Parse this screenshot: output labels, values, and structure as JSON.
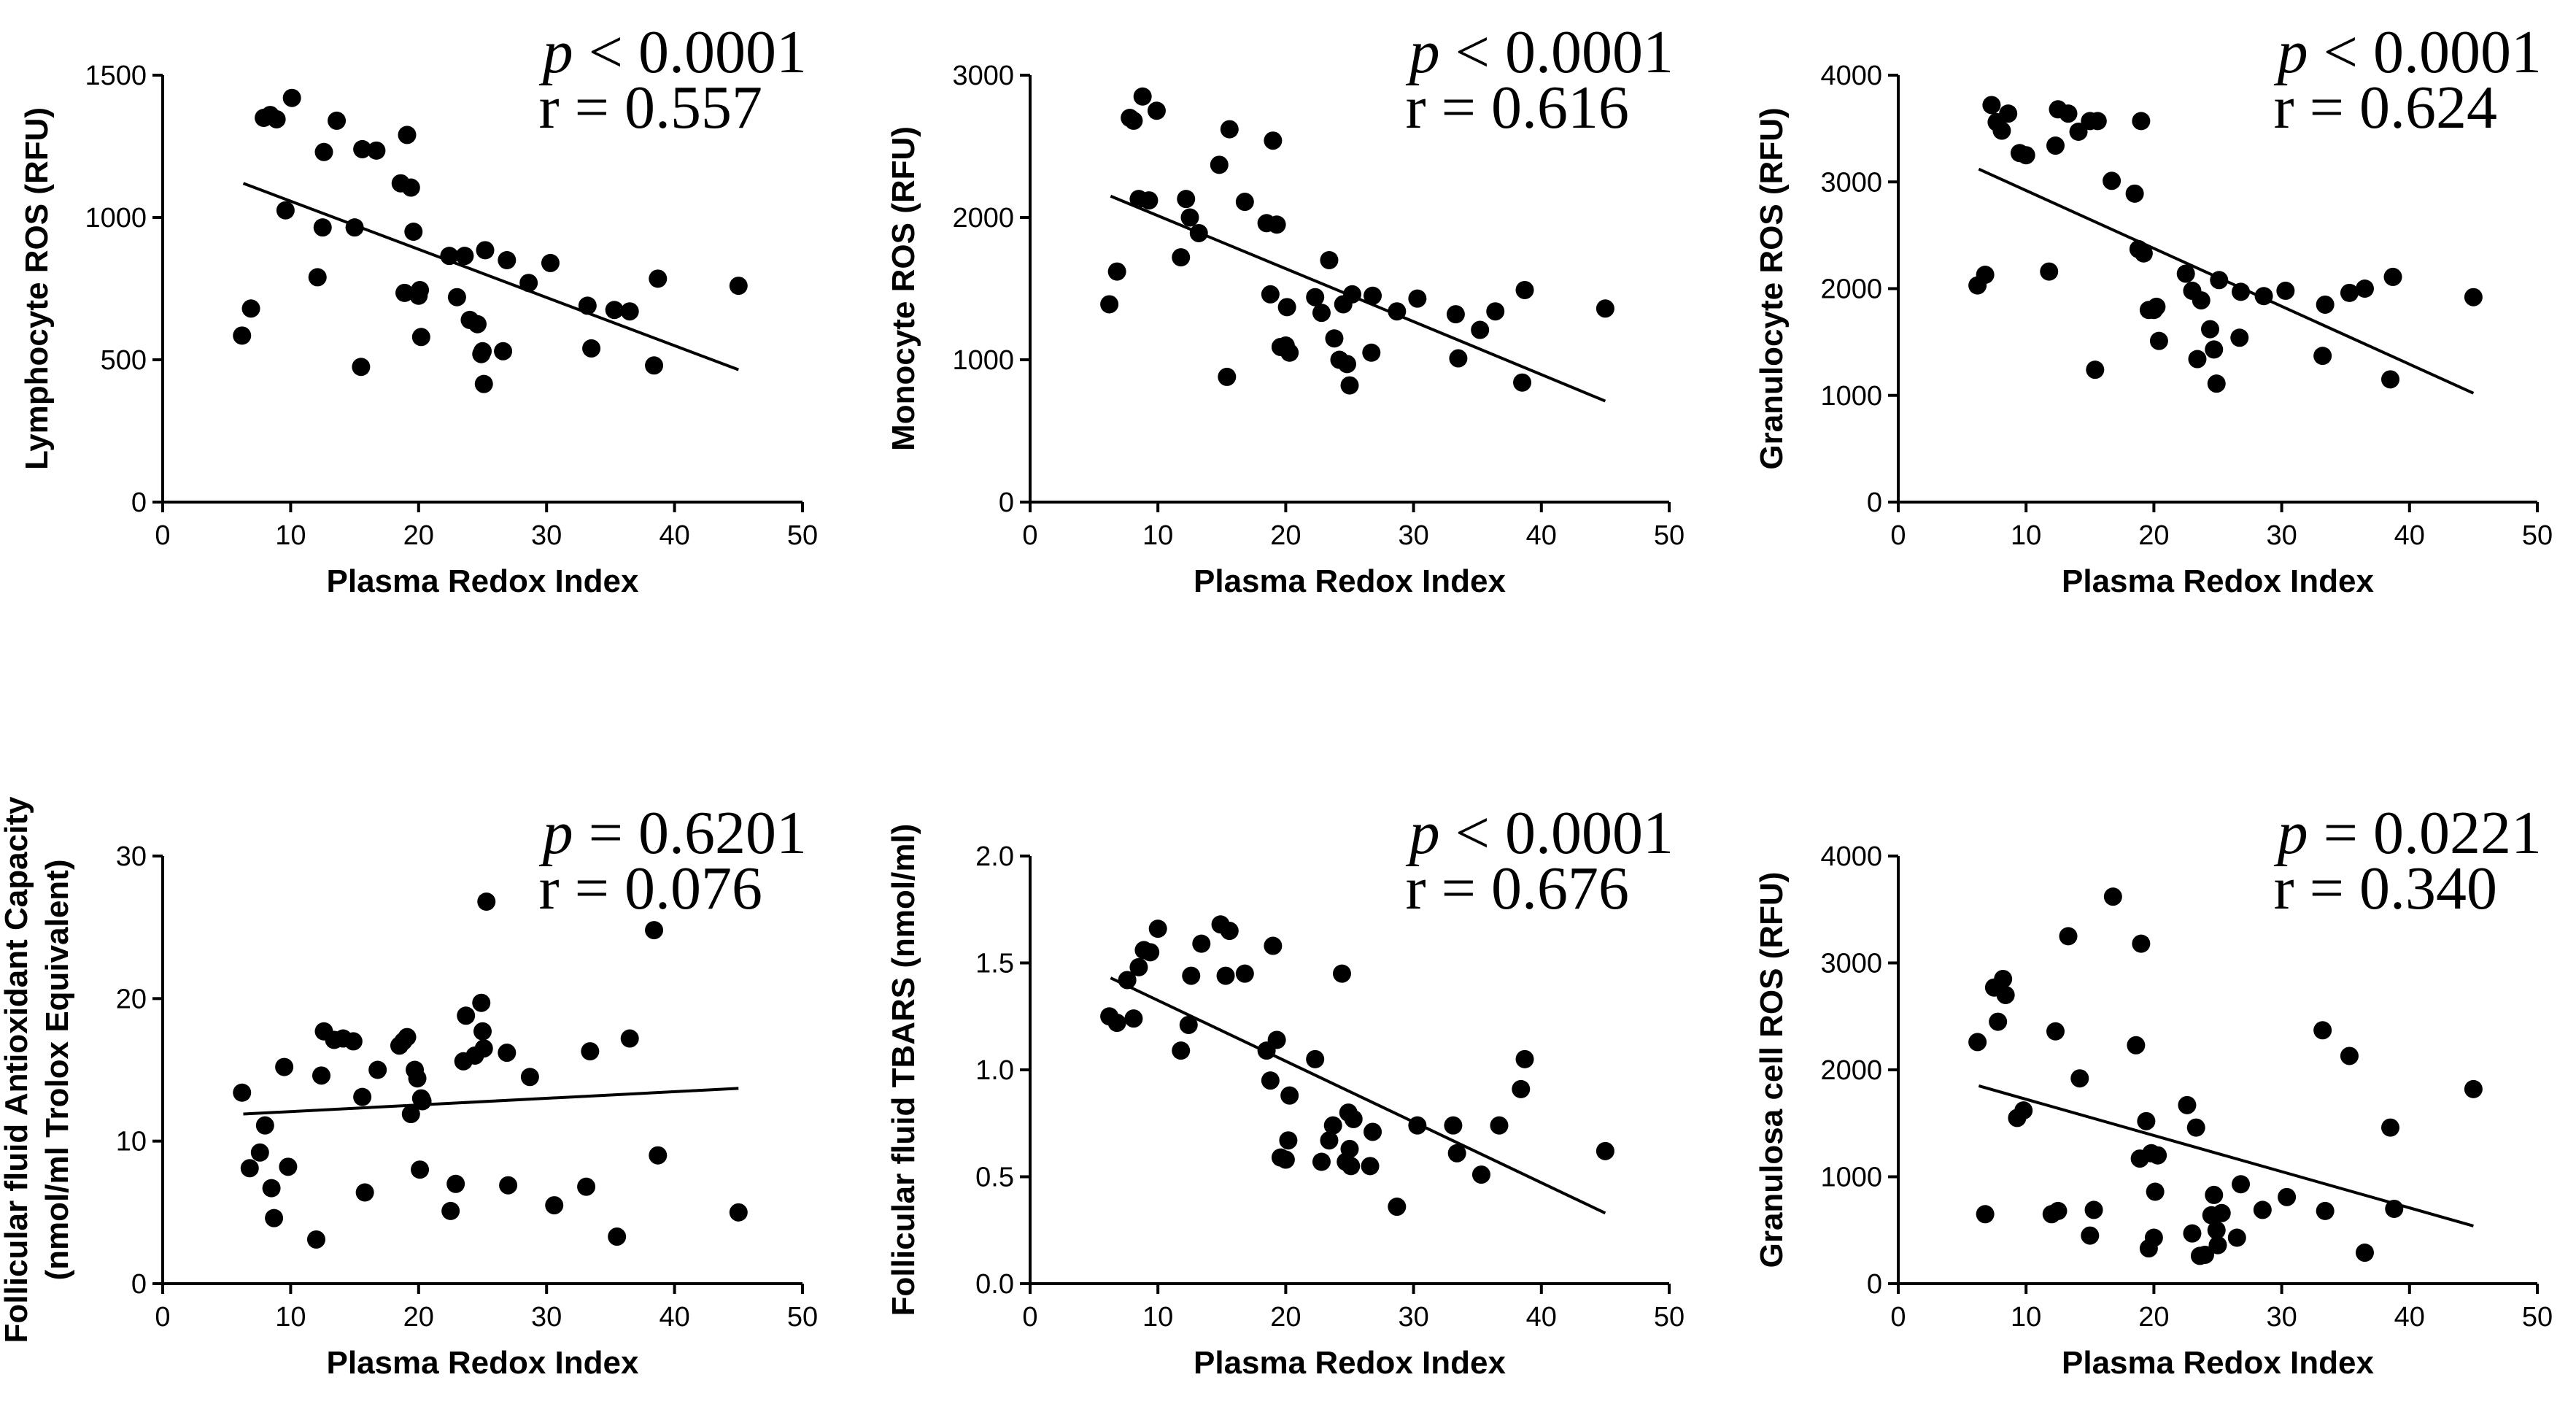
{
  "chart_data": [
    {
      "type": "scatter",
      "xlabel": "Plasma Redox Index",
      "ylabel": [
        "Lymphocyte ROS (RFU)"
      ],
      "xlim": [
        0,
        50
      ],
      "ylim": [
        0,
        1500
      ],
      "xticks": [
        "0",
        "10",
        "20",
        "30",
        "40",
        "50"
      ],
      "yticks": [
        "0",
        "500",
        "1000",
        "1500"
      ],
      "stats": {
        "p_symbol": "p",
        "p_rest": " < 0.0001",
        "r": "r = 0.557"
      },
      "fit_line": {
        "x": [
          6.3,
          45
        ],
        "y": [
          1120,
          465
        ]
      },
      "x": [
        6.2,
        6.9,
        7.9,
        8.4,
        8.9,
        9.6,
        10.1,
        12.1,
        12.5,
        12.6,
        13.6,
        15.0,
        15.5,
        15.6,
        16.7,
        18.6,
        18.9,
        19.1,
        19.4,
        19.6,
        20.0,
        20.1,
        20.2,
        22.4,
        23.0,
        23.6,
        24.0,
        24.6,
        24.9,
        25.0,
        25.1,
        25.2,
        26.6,
        26.9,
        28.6,
        30.3,
        33.2,
        33.5,
        35.3,
        36.5,
        38.4,
        38.7,
        45.0
      ],
      "y": [
        585,
        680,
        1350,
        1360,
        1345,
        1025,
        1420,
        790,
        965,
        1230,
        1340,
        965,
        475,
        1240,
        1235,
        1120,
        735,
        1290,
        1105,
        950,
        725,
        745,
        580,
        865,
        720,
        865,
        640,
        625,
        520,
        530,
        415,
        885,
        530,
        850,
        770,
        840,
        690,
        540,
        675,
        670,
        480,
        785,
        760
      ]
    },
    {
      "type": "scatter",
      "xlabel": "Plasma Redox Index",
      "ylabel": [
        "Monocyte ROS (RFU)"
      ],
      "xlim": [
        0,
        50
      ],
      "ylim": [
        0,
        3000
      ],
      "xticks": [
        "0",
        "10",
        "20",
        "30",
        "40",
        "50"
      ],
      "yticks": [
        "0",
        "1000",
        "2000",
        "3000"
      ],
      "stats": {
        "p_symbol": "p",
        "p_rest": " < 0.0001",
        "r": "r = 0.616"
      },
      "fit_line": {
        "x": [
          6.3,
          45
        ],
        "y": [
          2150,
          710
        ]
      },
      "x": [
        6.2,
        6.8,
        7.8,
        8.1,
        8.5,
        8.8,
        9.3,
        9.9,
        11.8,
        12.2,
        12.5,
        13.2,
        14.8,
        15.4,
        15.6,
        16.8,
        18.5,
        18.8,
        19.0,
        19.3,
        19.6,
        20.0,
        20.1,
        20.3,
        22.3,
        22.8,
        23.4,
        23.8,
        24.2,
        24.5,
        24.8,
        25.0,
        25.2,
        26.7,
        26.8,
        28.7,
        30.3,
        33.3,
        33.5,
        35.2,
        36.4,
        38.5,
        38.7,
        45.0
      ],
      "y": [
        1390,
        1620,
        2700,
        2680,
        2130,
        2850,
        2120,
        2750,
        1720,
        2130,
        2000,
        1890,
        2370,
        880,
        2620,
        2110,
        1960,
        1460,
        2540,
        1950,
        1090,
        1100,
        1370,
        1050,
        1440,
        1330,
        1700,
        1150,
        1000,
        1390,
        970,
        820,
        1460,
        1050,
        1450,
        1340,
        1430,
        1320,
        1010,
        1210,
        1340,
        840,
        1490,
        1360
      ]
    },
    {
      "type": "scatter",
      "xlabel": "Plasma Redox Index",
      "ylabel": [
        "Granulocyte ROS (RFU)"
      ],
      "xlim": [
        0,
        50
      ],
      "ylim": [
        0,
        4000
      ],
      "xticks": [
        "0",
        "10",
        "20",
        "30",
        "40",
        "50"
      ],
      "yticks": [
        "0",
        "1000",
        "2000",
        "3000",
        "4000"
      ],
      "stats": {
        "p_symbol": "p",
        "p_rest": " < 0.0001",
        "r": "r = 0.624"
      },
      "fit_line": {
        "x": [
          6.3,
          45
        ],
        "y": [
          3120,
          1020
        ]
      },
      "x": [
        6.2,
        6.8,
        7.3,
        7.7,
        8.1,
        8.6,
        9.5,
        10.0,
        11.8,
        12.3,
        12.5,
        13.3,
        14.1,
        15.0,
        15.4,
        15.6,
        16.7,
        18.5,
        18.8,
        19.0,
        19.2,
        19.6,
        20.0,
        20.2,
        20.4,
        22.5,
        23.0,
        23.4,
        23.7,
        24.4,
        24.7,
        24.9,
        25.1,
        26.7,
        26.8,
        28.6,
        30.3,
        33.2,
        33.4,
        35.3,
        36.5,
        38.5,
        38.7,
        45.0
      ],
      "y": [
        2030,
        2130,
        3720,
        3560,
        3480,
        3640,
        3270,
        3250,
        2160,
        3340,
        3680,
        3640,
        3470,
        3570,
        1240,
        3570,
        3010,
        2890,
        2370,
        3570,
        2330,
        1800,
        1800,
        1830,
        1510,
        2140,
        1980,
        1340,
        1890,
        1620,
        1430,
        1110,
        2080,
        1540,
        1970,
        1930,
        1980,
        1370,
        1850,
        1960,
        2000,
        1150,
        2110,
        1920
      ]
    },
    {
      "type": "scatter",
      "xlabel": "Plasma Redox Index",
      "ylabel": [
        "Follicular fluid Antioxidant Capacity",
        "(nmol/ml Trolox Equivalent)"
      ],
      "xlim": [
        0,
        50
      ],
      "ylim": [
        0,
        30
      ],
      "xticks": [
        "0",
        "10",
        "20",
        "30",
        "40",
        "50"
      ],
      "yticks": [
        "0",
        "10",
        "20",
        "30"
      ],
      "stats": {
        "p_symbol": "p",
        "p_rest": " = 0.6201",
        "r": "r = 0.076"
      },
      "fit_line": {
        "x": [
          6.3,
          45
        ],
        "y": [
          11.9,
          13.7
        ]
      },
      "x": [
        6.2,
        6.8,
        7.6,
        8.0,
        8.5,
        8.7,
        9.5,
        9.8,
        12.0,
        12.4,
        12.6,
        13.4,
        14.1,
        14.9,
        15.6,
        15.8,
        16.8,
        18.5,
        18.8,
        19.1,
        19.4,
        19.7,
        19.9,
        20.1,
        20.2,
        20.3,
        22.5,
        22.9,
        23.5,
        23.7,
        24.4,
        24.9,
        25.0,
        25.1,
        25.3,
        26.9,
        27.0,
        28.7,
        30.6,
        33.1,
        33.4,
        35.5,
        36.5,
        38.4,
        38.7,
        45.0
      ],
      "y": [
        13.4,
        8.1,
        9.2,
        11.1,
        6.7,
        4.6,
        15.2,
        8.2,
        3.1,
        14.6,
        17.7,
        17.1,
        17.2,
        17.0,
        13.1,
        6.4,
        15.0,
        16.7,
        17.0,
        17.3,
        11.9,
        15.0,
        14.4,
        8.0,
        13.0,
        12.8,
        5.1,
        7.0,
        15.6,
        18.8,
        16.0,
        19.7,
        17.7,
        16.5,
        26.8,
        16.2,
        6.9,
        14.5,
        5.5,
        6.8,
        16.3,
        3.3,
        17.2,
        24.8,
        9.0,
        5.0
      ]
    },
    {
      "type": "scatter",
      "xlabel": "Plasma Redox Index",
      "ylabel": [
        "Follicular fluid TBARS (nmol/ml)"
      ],
      "xlim": [
        0,
        50
      ],
      "ylim": [
        0,
        2.0
      ],
      "xticks": [
        "0",
        "10",
        "20",
        "30",
        "40",
        "50"
      ],
      "yticks": [
        "0.0",
        "0.5",
        "1.0",
        "1.5",
        "2.0"
      ],
      "stats": {
        "p_symbol": "p",
        "p_rest": " < 0.0001",
        "r": "r = 0.676"
      },
      "fit_line": {
        "x": [
          6.3,
          45
        ],
        "y": [
          1.43,
          0.33
        ]
      },
      "x": [
        6.2,
        6.8,
        7.6,
        8.1,
        8.5,
        8.9,
        9.4,
        10.0,
        11.8,
        12.4,
        12.6,
        13.4,
        14.9,
        15.3,
        15.6,
        16.8,
        18.5,
        18.8,
        19.0,
        19.3,
        19.6,
        20.0,
        20.2,
        20.3,
        22.3,
        22.8,
        23.4,
        23.7,
        24.4,
        24.7,
        24.9,
        25.0,
        25.1,
        25.3,
        26.6,
        26.8,
        28.7,
        30.3,
        33.1,
        33.4,
        35.3,
        36.7,
        38.4,
        38.7,
        45.0
      ],
      "y": [
        1.25,
        1.22,
        1.42,
        1.24,
        1.48,
        1.56,
        1.55,
        1.66,
        1.09,
        1.21,
        1.44,
        1.59,
        1.68,
        1.44,
        1.65,
        1.45,
        1.09,
        0.95,
        1.58,
        1.14,
        0.59,
        0.58,
        0.67,
        0.88,
        1.05,
        0.57,
        0.67,
        0.74,
        1.45,
        0.57,
        0.8,
        0.63,
        0.55,
        0.77,
        0.55,
        0.71,
        0.36,
        0.74,
        0.74,
        0.61,
        0.51,
        0.74,
        0.91,
        1.05,
        0.62
      ]
    },
    {
      "type": "scatter",
      "xlabel": "Plasma Redox Index",
      "ylabel": [
        "Granulosa cell ROS (RFU)"
      ],
      "xlim": [
        0,
        50
      ],
      "ylim": [
        0,
        4000
      ],
      "xticks": [
        "0",
        "10",
        "20",
        "30",
        "40",
        "50"
      ],
      "yticks": [
        "0",
        "1000",
        "2000",
        "3000",
        "4000"
      ],
      "stats": {
        "p_symbol": "p",
        "p_rest": " = 0.0221",
        "r": "r = 0.340"
      },
      "fit_line": {
        "x": [
          6.3,
          45
        ],
        "y": [
          1850,
          540
        ]
      },
      "x": [
        6.2,
        6.8,
        7.5,
        7.8,
        8.2,
        8.4,
        9.3,
        9.8,
        12.0,
        12.3,
        12.5,
        13.3,
        14.2,
        15.0,
        15.3,
        16.8,
        18.6,
        18.9,
        19.0,
        19.4,
        19.6,
        19.8,
        20.0,
        20.1,
        20.3,
        22.6,
        23.0,
        23.3,
        23.6,
        24.0,
        24.5,
        24.7,
        24.9,
        25.0,
        25.3,
        26.5,
        26.8,
        28.5,
        30.4,
        33.2,
        33.4,
        35.3,
        36.5,
        38.5,
        38.8,
        45.0
      ],
      "y": [
        2260,
        650,
        2770,
        2450,
        2850,
        2700,
        1550,
        1620,
        650,
        2360,
        680,
        3250,
        1920,
        450,
        690,
        3620,
        2230,
        1170,
        3180,
        1520,
        330,
        1220,
        430,
        860,
        1200,
        1670,
        470,
        1460,
        260,
        270,
        640,
        830,
        500,
        360,
        660,
        430,
        930,
        690,
        810,
        2370,
        680,
        2130,
        290,
        1460,
        700,
        1820
      ]
    }
  ]
}
